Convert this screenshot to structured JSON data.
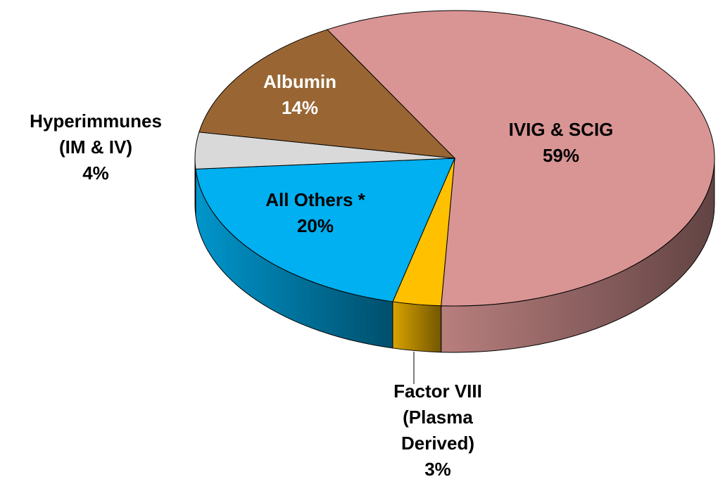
{
  "chart_data": {
    "type": "pie",
    "three_d": true,
    "categories": [
      "IVIG & SCIG",
      "Factor VIII (Plasma Derived)",
      "All Others *",
      "Hyperimmunes (IM & IV)",
      "Albumin"
    ],
    "values": [
      59,
      3,
      20,
      4,
      14
    ],
    "value_labels": [
      "59%",
      "3%",
      "20%",
      "4%",
      "14%"
    ],
    "colors": [
      "#d99594",
      "#ffc000",
      "#00b0f0",
      "#d9d9d9",
      "#996633"
    ]
  }
}
